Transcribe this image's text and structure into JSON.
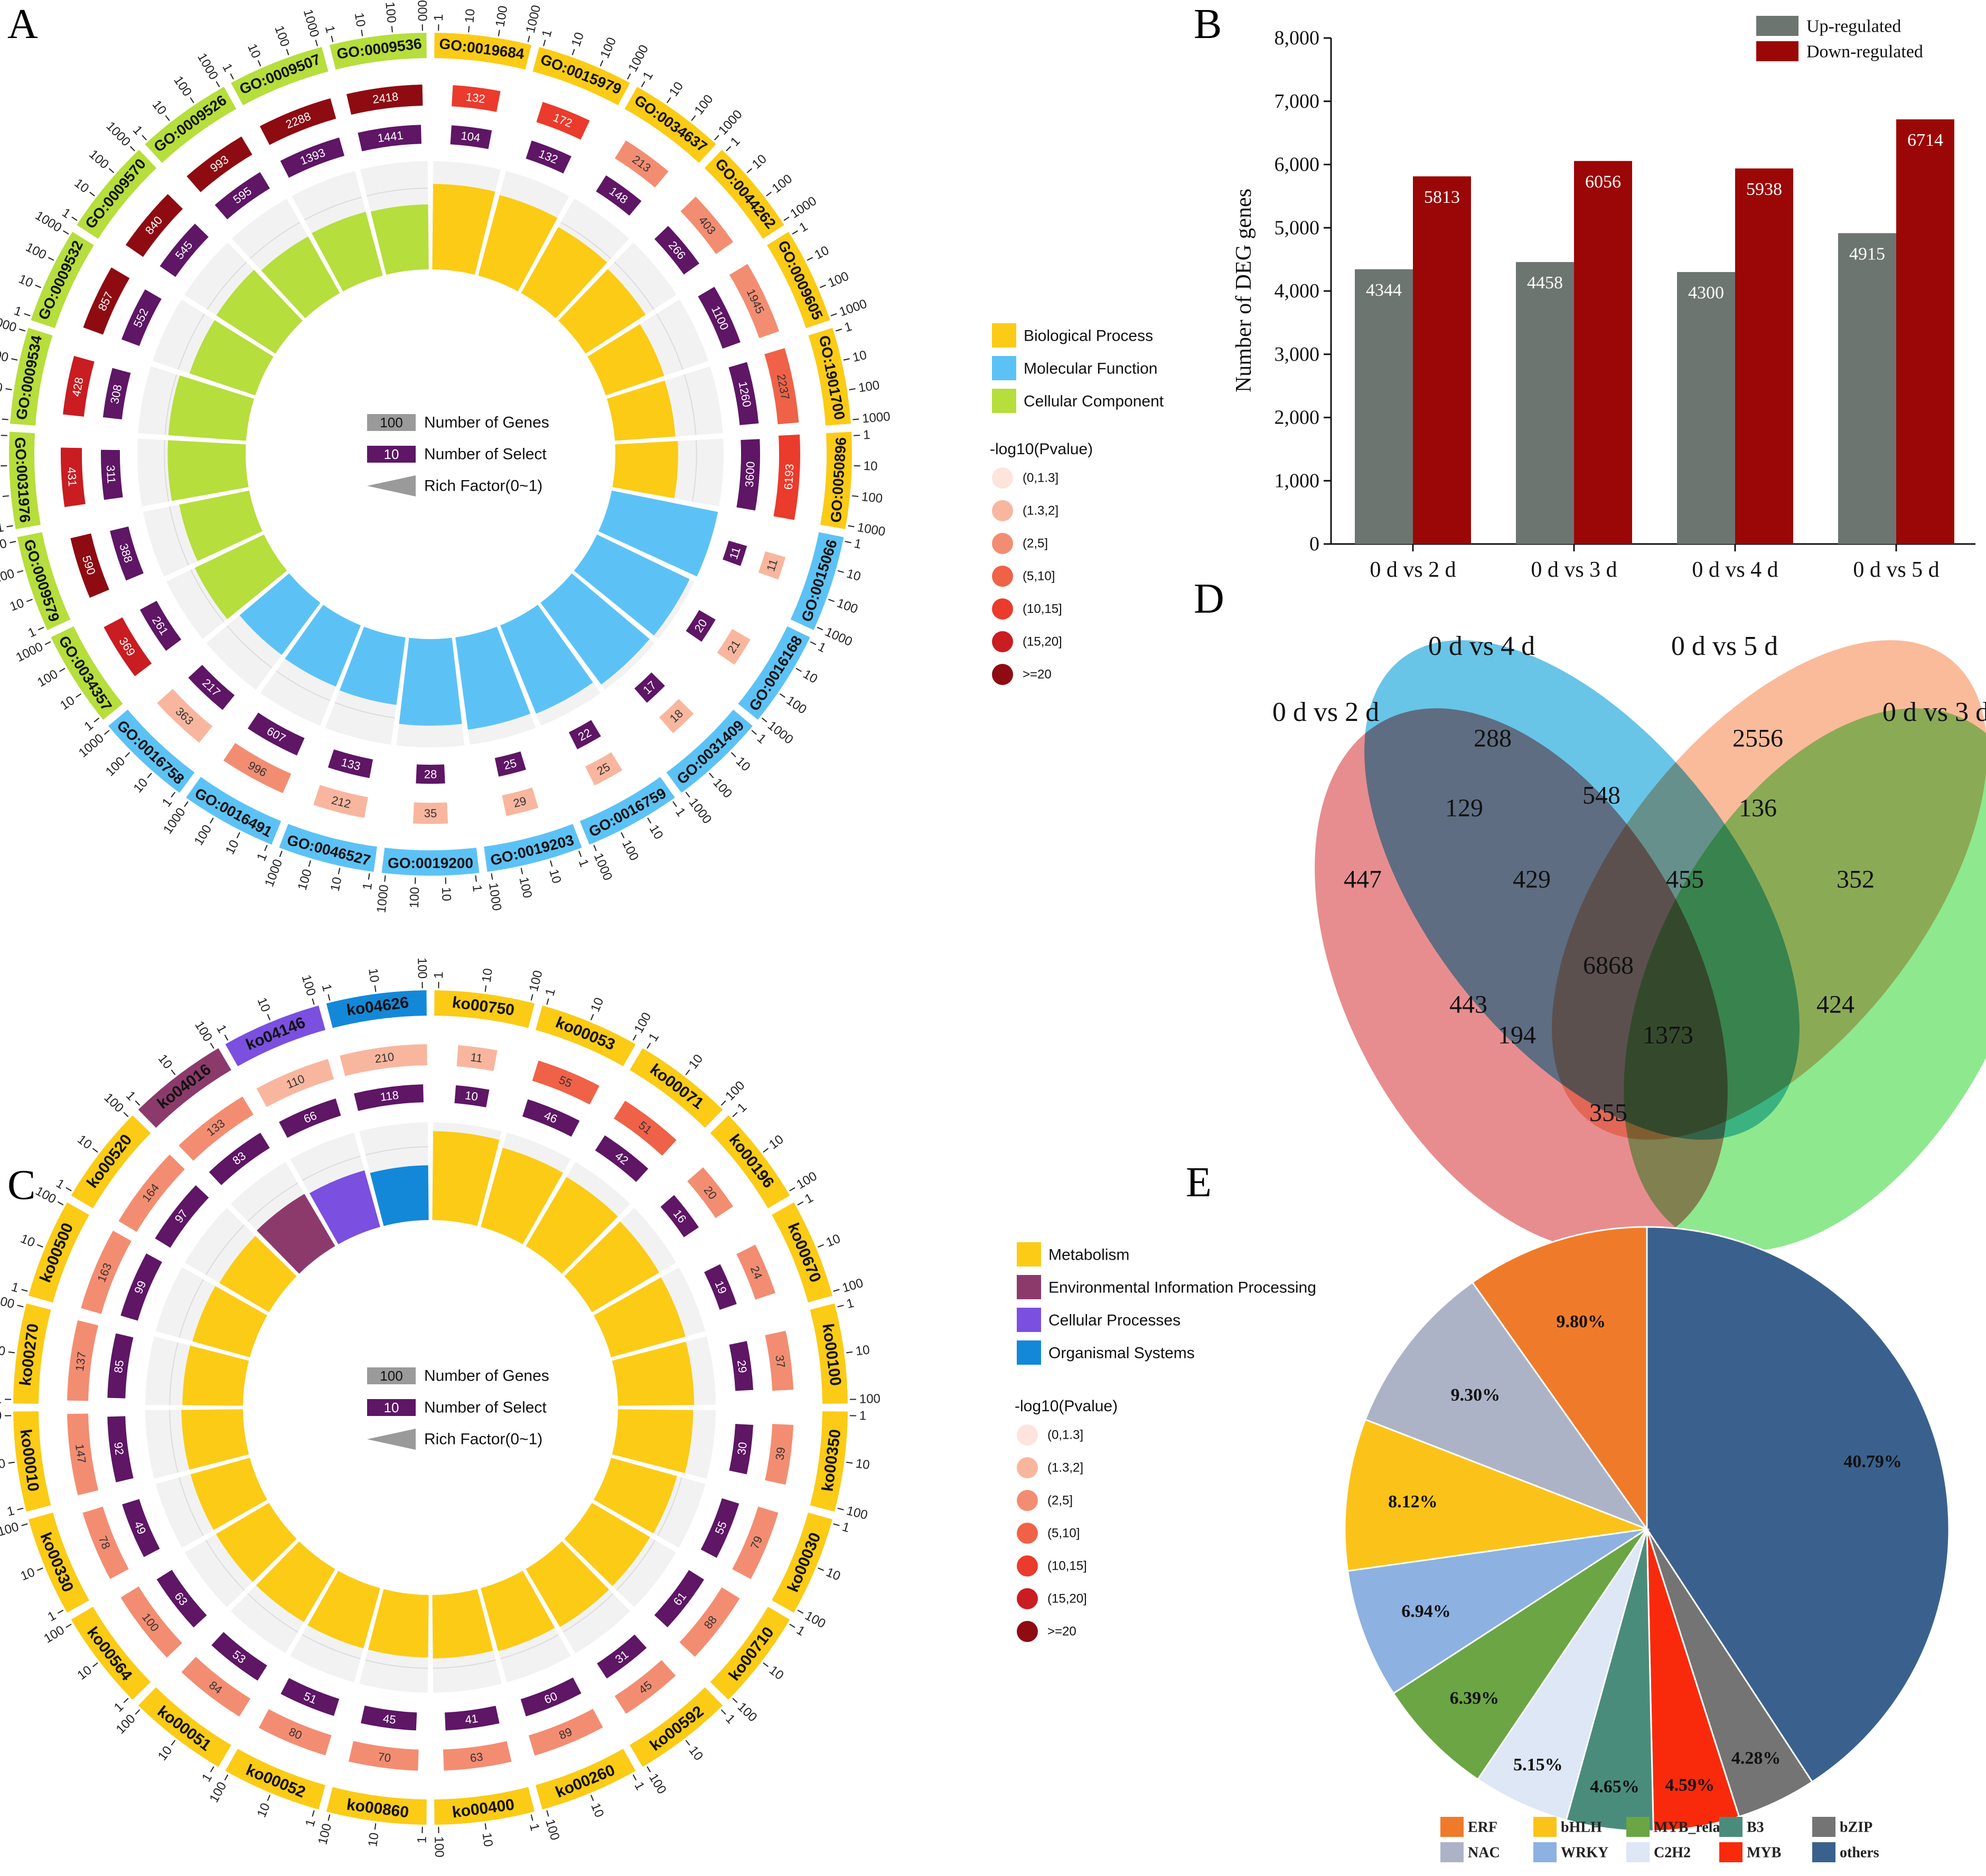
{
  "panel_labels": {
    "a": "A",
    "b": "B",
    "c": "C",
    "d": "D",
    "e": "E"
  },
  "circos_common": {
    "legend_scale": {
      "genes_value": "100",
      "genes_label": "Number of Genes",
      "select_value": "10",
      "select_label": "Number of Select",
      "rich_label": "Rich Factor(0~1)"
    },
    "pvalue_title": "-log10(Pvalue)",
    "pvalue_bins": [
      "(0,1.3]",
      "(1.3,2]",
      "(2,5]",
      "(5,10]",
      "(10,15]",
      "(15,20]",
      ">=20"
    ],
    "pvalue_colors": [
      "#fde4dc",
      "#f9b69e",
      "#f38d72",
      "#ef6248",
      "#ea3b2c",
      "#c91d22",
      "#8e0b12"
    ]
  },
  "chart_data": [
    {
      "id": "A",
      "type": "circos",
      "title": "GO enrichment",
      "categories": [
        {
          "name": "Biological Process",
          "color": "#fbcb16"
        },
        {
          "name": "Molecular Function",
          "color": "#5cc2f5"
        },
        {
          "name": "Cellular Component",
          "color": "#b6de3c"
        }
      ],
      "terms": [
        {
          "id": "GO:0019684",
          "cat": 0,
          "ticks": [
            "1",
            "10",
            "100",
            "1000"
          ],
          "genes": 132,
          "select": 104,
          "p": 4,
          "rich": 0.79
        },
        {
          "id": "GO:0015979",
          "cat": 0,
          "ticks": [
            "1",
            "10",
            "100",
            "1000"
          ],
          "genes": 172,
          "select": 132,
          "p": 4,
          "rich": 0.77
        },
        {
          "id": "GO:0034637",
          "cat": 0,
          "ticks": [
            "1",
            "10",
            "100",
            "1000"
          ],
          "genes": 213,
          "select": 148,
          "p": 2,
          "rich": 0.7
        },
        {
          "id": "GO:0044262",
          "cat": 0,
          "ticks": [
            "1",
            "10",
            "100",
            "1000"
          ],
          "genes": 403,
          "select": 266,
          "p": 2,
          "rich": 0.66
        },
        {
          "id": "GO:0009605",
          "cat": 0,
          "ticks": [
            "1",
            "10",
            "100",
            "1000"
          ],
          "genes": 1945,
          "select": 1100,
          "p": 2,
          "rich": 0.57
        },
        {
          "id": "GO:1901700",
          "cat": 0,
          "ticks": [
            "1",
            "10",
            "100",
            "1000"
          ],
          "genes": 2237,
          "select": 1260,
          "p": 3,
          "rich": 0.56
        },
        {
          "id": "GO:0050896",
          "cat": 0,
          "ticks": [
            "1",
            "10",
            "100",
            "1000"
          ],
          "genes": 6193,
          "select": 3600,
          "p": 4,
          "rich": 0.58
        },
        {
          "id": "GO:0015066",
          "cat": 1,
          "ticks": [
            "1",
            "10",
            "100",
            "1000"
          ],
          "genes": 11,
          "select": 11,
          "p": 1,
          "rich": 1.0
        },
        {
          "id": "GO:0016168",
          "cat": 1,
          "ticks": [
            "1",
            "10",
            "100",
            "1000"
          ],
          "genes": 21,
          "select": 20,
          "p": 1,
          "rich": 0.95
        },
        {
          "id": "GO:0031409",
          "cat": 1,
          "ticks": [
            "1",
            "10",
            "100",
            "1000"
          ],
          "genes": 18,
          "select": 17,
          "p": 1,
          "rich": 0.94
        },
        {
          "id": "GO:0016759",
          "cat": 1,
          "ticks": [
            "1",
            "10",
            "100",
            "1000"
          ],
          "genes": 25,
          "select": 22,
          "p": 1,
          "rich": 0.88
        },
        {
          "id": "GO:0019203",
          "cat": 1,
          "ticks": [
            "1",
            "10",
            "100",
            "1000"
          ],
          "genes": 29,
          "select": 25,
          "p": 1,
          "rich": 0.86
        },
        {
          "id": "GO:0019200",
          "cat": 1,
          "ticks": [
            "1",
            "10",
            "100",
            "1000"
          ],
          "genes": 35,
          "select": 28,
          "p": 1,
          "rich": 0.8
        },
        {
          "id": "GO:0046527",
          "cat": 1,
          "ticks": [
            "1",
            "10",
            "100",
            "1000"
          ],
          "genes": 212,
          "select": 133,
          "p": 1,
          "rich": 0.63
        },
        {
          "id": "GO:0016491",
          "cat": 1,
          "ticks": [
            "1",
            "10",
            "100",
            "1000"
          ],
          "genes": 996,
          "select": 607,
          "p": 2,
          "rich": 0.61
        },
        {
          "id": "GO:0016758",
          "cat": 1,
          "ticks": [
            "1",
            "10",
            "100",
            "1000"
          ],
          "genes": 363,
          "select": 217,
          "p": 1,
          "rich": 0.6
        },
        {
          "id": "GO:0034357",
          "cat": 2,
          "ticks": [
            "1",
            "10",
            "100",
            "1000"
          ],
          "genes": 369,
          "select": 261,
          "p": 5,
          "rich": 0.71
        },
        {
          "id": "GO:0009579",
          "cat": 2,
          "ticks": [
            "1",
            "10",
            "100",
            "1000"
          ],
          "genes": 590,
          "select": 388,
          "p": 6,
          "rich": 0.66
        },
        {
          "id": "GO:0031976",
          "cat": 2,
          "ticks": [
            "1",
            "10",
            "100",
            "1000"
          ],
          "genes": 431,
          "select": 311,
          "p": 5,
          "rich": 0.72
        },
        {
          "id": "GO:0009534",
          "cat": 2,
          "ticks": [
            "1",
            "10",
            "100",
            "1000"
          ],
          "genes": 428,
          "select": 308,
          "p": 5,
          "rich": 0.72
        },
        {
          "id": "GO:0009532",
          "cat": 2,
          "ticks": [
            "1",
            "10",
            "100",
            "1000"
          ],
          "genes": 857,
          "select": 552,
          "p": 6,
          "rich": 0.64
        },
        {
          "id": "GO:0009570",
          "cat": 2,
          "ticks": [
            "1",
            "10",
            "100",
            "1000"
          ],
          "genes": 840,
          "select": 545,
          "p": 6,
          "rich": 0.65
        },
        {
          "id": "GO:0009526",
          "cat": 2,
          "ticks": [
            "1",
            "10",
            "100",
            "1000"
          ],
          "genes": 993,
          "select": 595,
          "p": 6,
          "rich": 0.6
        },
        {
          "id": "GO:0009507",
          "cat": 2,
          "ticks": [
            "1",
            "10",
            "100",
            "1000"
          ],
          "genes": 2288,
          "select": 1393,
          "p": 6,
          "rich": 0.61
        },
        {
          "id": "GO:0009536",
          "cat": 2,
          "ticks": [
            "1",
            "10",
            "100",
            "1000"
          ],
          "genes": 2418,
          "select": 1441,
          "p": 6,
          "rich": 0.6
        }
      ]
    },
    {
      "id": "C",
      "type": "circos",
      "title": "KEGG enrichment",
      "categories": [
        {
          "name": "Metabolism",
          "color": "#fbcb16"
        },
        {
          "name": "Environmental Information Processing",
          "color": "#8c3a6b"
        },
        {
          "name": "Cellular Processes",
          "color": "#7b4fe0"
        },
        {
          "name": "Organismal Systems",
          "color": "#1488d8"
        }
      ],
      "terms": [
        {
          "id": "ko00750",
          "cat": 0,
          "ticks": [
            "1",
            "10",
            "100"
          ],
          "genes": 11,
          "select": 10,
          "p": 1,
          "rich": 0.91
        },
        {
          "id": "ko00053",
          "cat": 0,
          "ticks": [
            "1",
            "10",
            "100"
          ],
          "genes": 55,
          "select": 46,
          "p": 3,
          "rich": 0.84
        },
        {
          "id": "ko00071",
          "cat": 0,
          "ticks": [
            "1",
            "10",
            "100"
          ],
          "genes": 51,
          "select": 42,
          "p": 3,
          "rich": 0.82
        },
        {
          "id": "ko00196",
          "cat": 0,
          "ticks": [
            "1",
            "10",
            "100"
          ],
          "genes": 20,
          "select": 16,
          "p": 2,
          "rich": 0.8
        },
        {
          "id": "ko00670",
          "cat": 0,
          "ticks": [
            "1",
            "10",
            "100"
          ],
          "genes": 24,
          "select": 19,
          "p": 2,
          "rich": 0.79
        },
        {
          "id": "ko00100",
          "cat": 0,
          "ticks": [
            "1",
            "10",
            "100"
          ],
          "genes": 37,
          "select": 29,
          "p": 2,
          "rich": 0.78
        },
        {
          "id": "ko00350",
          "cat": 0,
          "ticks": [
            "1",
            "10",
            "100"
          ],
          "genes": 39,
          "select": 30,
          "p": 2,
          "rich": 0.77
        },
        {
          "id": "ko00030",
          "cat": 0,
          "ticks": [
            "1",
            "10",
            "100"
          ],
          "genes": 79,
          "select": 55,
          "p": 2,
          "rich": 0.7
        },
        {
          "id": "ko00710",
          "cat": 0,
          "ticks": [
            "1",
            "10",
            "100"
          ],
          "genes": 88,
          "select": 61,
          "p": 2,
          "rich": 0.69
        },
        {
          "id": "ko00592",
          "cat": 0,
          "ticks": [
            "1",
            "10",
            "100"
          ],
          "genes": 45,
          "select": 31,
          "p": 2,
          "rich": 0.69
        },
        {
          "id": "ko00260",
          "cat": 0,
          "ticks": [
            "1",
            "10",
            "100"
          ],
          "genes": 89,
          "select": 60,
          "p": 2,
          "rich": 0.67
        },
        {
          "id": "ko00400",
          "cat": 0,
          "ticks": [
            "1",
            "10",
            "100"
          ],
          "genes": 63,
          "select": 41,
          "p": 2,
          "rich": 0.65
        },
        {
          "id": "ko00860",
          "cat": 0,
          "ticks": [
            "1",
            "10",
            "100"
          ],
          "genes": 70,
          "select": 45,
          "p": 2,
          "rich": 0.64
        },
        {
          "id": "ko00052",
          "cat": 0,
          "ticks": [
            "1",
            "10",
            "100"
          ],
          "genes": 80,
          "select": 51,
          "p": 2,
          "rich": 0.64
        },
        {
          "id": "ko00051",
          "cat": 0,
          "ticks": [
            "1",
            "10",
            "100"
          ],
          "genes": 84,
          "select": 53,
          "p": 2,
          "rich": 0.63
        },
        {
          "id": "ko00564",
          "cat": 0,
          "ticks": [
            "1",
            "10",
            "100"
          ],
          "genes": 100,
          "select": 63,
          "p": 2,
          "rich": 0.63
        },
        {
          "id": "ko00330",
          "cat": 0,
          "ticks": [
            "1",
            "10",
            "100"
          ],
          "genes": 78,
          "select": 49,
          "p": 2,
          "rich": 0.63
        },
        {
          "id": "ko00010",
          "cat": 0,
          "ticks": [
            "1",
            "10",
            "100"
          ],
          "genes": 147,
          "select": 92,
          "p": 2,
          "rich": 0.63
        },
        {
          "id": "ko00270",
          "cat": 0,
          "ticks": [
            "1",
            "10",
            "100"
          ],
          "genes": 137,
          "select": 85,
          "p": 2,
          "rich": 0.62
        },
        {
          "id": "ko00500",
          "cat": 0,
          "ticks": [
            "1",
            "10",
            "100"
          ],
          "genes": 163,
          "select": 99,
          "p": 2,
          "rich": 0.61
        },
        {
          "id": "ko00520",
          "cat": 0,
          "ticks": [
            "1",
            "10",
            "100"
          ],
          "genes": 164,
          "select": 97,
          "p": 2,
          "rich": 0.59
        },
        {
          "id": "ko04016",
          "cat": 1,
          "ticks": [
            "1",
            "10",
            "100"
          ],
          "genes": 133,
          "select": 83,
          "p": 2,
          "rich": 0.62
        },
        {
          "id": "ko04146",
          "cat": 2,
          "ticks": [
            "1",
            "10",
            "100"
          ],
          "genes": 110,
          "select": 66,
          "p": 1,
          "rich": 0.6
        },
        {
          "id": "ko04626",
          "cat": 3,
          "ticks": [
            "1",
            "10",
            "100"
          ],
          "genes": 210,
          "select": 118,
          "p": 1,
          "rich": 0.56
        }
      ]
    },
    {
      "id": "B",
      "type": "bar",
      "ylabel": "Number of DEG genes",
      "categories": [
        "0 d vs 2 d",
        "0 d vs 3 d",
        "0 d vs 4 d",
        "0 d vs 5 d"
      ],
      "yticks": [
        "0",
        "1,000",
        "2,000",
        "3,000",
        "4,000",
        "5,000",
        "6,000",
        "7,000",
        "8,000"
      ],
      "ylim": [
        0,
        8000
      ],
      "series": [
        {
          "name": "Up-regulated",
          "color": "#6d7570",
          "values": [
            4344,
            4458,
            4300,
            4915
          ],
          "labels": [
            "4344",
            "4458",
            "4300",
            "4915"
          ]
        },
        {
          "name": "Down-regulated",
          "color": "#9b0707",
          "values": [
            5813,
            6056,
            5938,
            6714
          ],
          "labels": [
            "5813",
            "6056",
            "5938",
            "6714"
          ]
        }
      ]
    },
    {
      "id": "D",
      "type": "venn",
      "sets": [
        {
          "name": "0 d vs 2 d",
          "color": "#e06d70"
        },
        {
          "name": "0 d vs 4 d",
          "color": "#3eb5e0"
        },
        {
          "name": "0 d vs 5 d",
          "color": "#f8a87e"
        },
        {
          "name": "0 d vs 3 d",
          "color": "#6ee26e"
        }
      ],
      "regions": [
        {
          "sets": "2",
          "value": "447"
        },
        {
          "sets": "4",
          "value": "288"
        },
        {
          "sets": "5",
          "value": "2556"
        },
        {
          "sets": "3",
          "value": "352"
        },
        {
          "sets": "2,4",
          "value": "129"
        },
        {
          "sets": "4,5",
          "value": "548"
        },
        {
          "sets": "5,3",
          "value": "136"
        },
        {
          "sets": "2,4,5",
          "value": "429"
        },
        {
          "sets": "4,5,3",
          "value": "455"
        },
        {
          "sets": "2,4,5,3",
          "value": "6868"
        },
        {
          "sets": "2,5",
          "value": "443"
        },
        {
          "sets": "4,3",
          "value": "424"
        },
        {
          "sets": "2,5,3",
          "value": "194"
        },
        {
          "sets": "2,4,3",
          "value": "1373"
        },
        {
          "sets": "2,3",
          "value": "355"
        }
      ]
    },
    {
      "id": "E",
      "type": "pie",
      "slices": [
        {
          "name": "others",
          "value": 40.79,
          "label": "40.79%",
          "color": "#3a618d"
        },
        {
          "name": "bZIP",
          "value": 4.28,
          "label": "4.28%",
          "color": "#747474"
        },
        {
          "name": "MYB",
          "value": 4.59,
          "label": "4.59%",
          "color": "#f92a0c"
        },
        {
          "name": "B3",
          "value": 4.65,
          "label": "4.65%",
          "color": "#4a8c7c"
        },
        {
          "name": "C2H2",
          "value": 5.15,
          "label": "5.15%",
          "color": "#dde7f5"
        },
        {
          "name": "MYB_related",
          "value": 6.39,
          "label": "6.39%",
          "color": "#6ba544"
        },
        {
          "name": "WRKY",
          "value": 6.94,
          "label": "6.94%",
          "color": "#8db1e1"
        },
        {
          "name": "bHLH",
          "value": 8.12,
          "label": "8.12%",
          "color": "#fbc31a"
        },
        {
          "name": "NAC",
          "value": 9.3,
          "label": "9.30%",
          "color": "#adb3c7"
        },
        {
          "name": "ERF",
          "value": 9.8,
          "label": "9.80%",
          "color": "#ef7b2a"
        }
      ],
      "legend": [
        {
          "name": "ERF",
          "color": "#ef7b2a"
        },
        {
          "name": "bHLH",
          "color": "#fbc31a"
        },
        {
          "name": "MYB_related",
          "color": "#6ba544"
        },
        {
          "name": "B3",
          "color": "#4a8c7c"
        },
        {
          "name": "bZIP",
          "color": "#747474"
        },
        {
          "name": "NAC",
          "color": "#adb3c7"
        },
        {
          "name": "WRKY",
          "color": "#8db1e1"
        },
        {
          "name": "C2H2",
          "color": "#dde7f5"
        },
        {
          "name": "MYB",
          "color": "#f92a0c"
        },
        {
          "name": "others",
          "color": "#3a618d"
        }
      ]
    }
  ]
}
